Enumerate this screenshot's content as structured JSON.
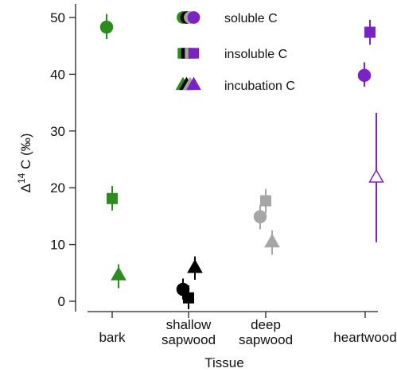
{
  "chart_data": {
    "type": "scatter",
    "xlabel": "Tissue",
    "ylabel": "Δ14 C (‰)",
    "ylabel_parts": {
      "delta": "Δ",
      "superscript": "14",
      "rest": " C (‰)"
    },
    "categories": [
      "bark",
      "shallow sapwood",
      "deep sapwood",
      "heartwood"
    ],
    "category_labels": [
      [
        "bark"
      ],
      [
        "shallow",
        "sapwood"
      ],
      [
        "deep",
        "sapwood"
      ],
      [
        "heartwood"
      ]
    ],
    "ylim": [
      -2,
      52
    ],
    "yticks": [
      0,
      10,
      20,
      30,
      40,
      50
    ],
    "grid": false,
    "legend_position": "top-center",
    "colors": {
      "bark": "#2e8b1f",
      "shallow sapwood": "#000000",
      "deep sapwood": "#a6a6a6",
      "heartwood": "#7b22c4"
    },
    "series": [
      {
        "name": "soluble C",
        "marker": "circle",
        "points": [
          {
            "category": "bark",
            "y": 48.3,
            "err_low": 46.2,
            "err_high": 50.6,
            "filled": true
          },
          {
            "category": "shallow sapwood",
            "y": 2.1,
            "err_low": 0.3,
            "err_high": 4.0,
            "filled": true
          },
          {
            "category": "deep sapwood",
            "y": 14.9,
            "err_low": 12.7,
            "err_high": 17.0,
            "filled": true
          },
          {
            "category": "heartwood",
            "y": 39.8,
            "err_low": 37.8,
            "err_high": 42.1,
            "filled": true
          }
        ]
      },
      {
        "name": "insoluble C",
        "marker": "square",
        "points": [
          {
            "category": "bark",
            "y": 18.1,
            "err_low": 16.0,
            "err_high": 20.3,
            "filled": true
          },
          {
            "category": "shallow sapwood",
            "y": 0.6,
            "err_low": -1.4,
            "err_high": 2.8,
            "filled": true
          },
          {
            "category": "deep sapwood",
            "y": 17.7,
            "err_low": 15.5,
            "err_high": 19.8,
            "filled": true
          },
          {
            "category": "heartwood",
            "y": 47.4,
            "err_low": 45.2,
            "err_high": 49.6,
            "filled": true
          }
        ]
      },
      {
        "name": "incubation C",
        "marker": "triangle",
        "points": [
          {
            "category": "bark",
            "y": 4.6,
            "err_low": 2.3,
            "err_high": 6.5,
            "filled": true
          },
          {
            "category": "shallow sapwood",
            "y": 5.9,
            "err_low": 3.8,
            "err_high": 7.9,
            "filled": true
          },
          {
            "category": "deep sapwood",
            "y": 10.4,
            "err_low": 8.2,
            "err_high": 12.5,
            "filled": true
          },
          {
            "category": "heartwood",
            "y": 21.8,
            "err_low": 10.4,
            "err_high": 33.2,
            "filled": false
          }
        ]
      }
    ]
  }
}
